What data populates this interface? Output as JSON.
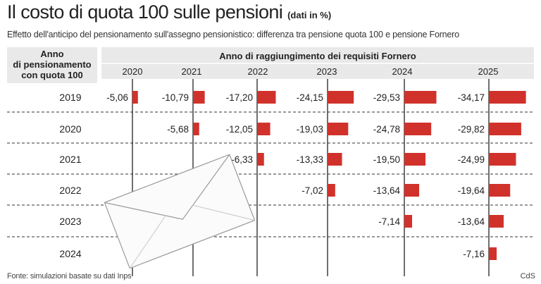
{
  "title": {
    "main": "Il costo di quota 100 sulle pensioni",
    "unit": "(dati in %)"
  },
  "subtitle": "Effetto dell'anticipo del pensionamento sull'assegno pensionistico: differenza tra pensione quota 100 e pensione Fornero",
  "footer": {
    "source": "Fonte: simulazioni basate su dati Inps",
    "credit": "CdS"
  },
  "colors": {
    "bar": "#d0322b",
    "header_bg": "#e9e9e9",
    "axis_line": "#222222"
  },
  "icon": "envelope-icon",
  "chart_data": {
    "type": "bar",
    "row_header": [
      "Anno",
      "di pensionamento",
      "con quota 100"
    ],
    "column_header": "Anno di raggiungimento dei requisiti Fornero",
    "columns": [
      "2020",
      "2021",
      "2022",
      "2023",
      "2024",
      "2025"
    ],
    "rows": [
      {
        "year": "2019",
        "values": [
          -5.06,
          -10.79,
          -17.2,
          -24.15,
          -29.53,
          -34.17
        ],
        "labels": [
          "-5,06",
          "-10,79",
          "-17,20",
          "-24,15",
          "-29,53",
          "-34,17"
        ]
      },
      {
        "year": "2020",
        "values": [
          null,
          -5.68,
          -12.05,
          -19.03,
          -24.78,
          -29.82
        ],
        "labels": [
          "",
          "-5,68",
          "-12,05",
          "-19,03",
          "-24,78",
          "-29,82"
        ]
      },
      {
        "year": "2021",
        "values": [
          null,
          null,
          -6.33,
          -13.33,
          -19.5,
          -24.99
        ],
        "labels": [
          "",
          "",
          "-6,33",
          "-13,33",
          "-19,50",
          "-24,99"
        ]
      },
      {
        "year": "2022",
        "values": [
          null,
          null,
          null,
          -7.02,
          -13.64,
          -19.64
        ],
        "labels": [
          "",
          "",
          "",
          "-7,02",
          "-13,64",
          "-19,64"
        ]
      },
      {
        "year": "2023",
        "values": [
          null,
          null,
          null,
          null,
          -7.14,
          -13.64
        ],
        "labels": [
          "",
          "",
          "",
          "",
          "-7,14",
          "-13,64"
        ]
      },
      {
        "year": "2024",
        "values": [
          null,
          null,
          null,
          null,
          null,
          -7.16
        ],
        "labels": [
          "",
          "",
          "",
          "",
          "",
          "-7,16"
        ]
      }
    ]
  }
}
